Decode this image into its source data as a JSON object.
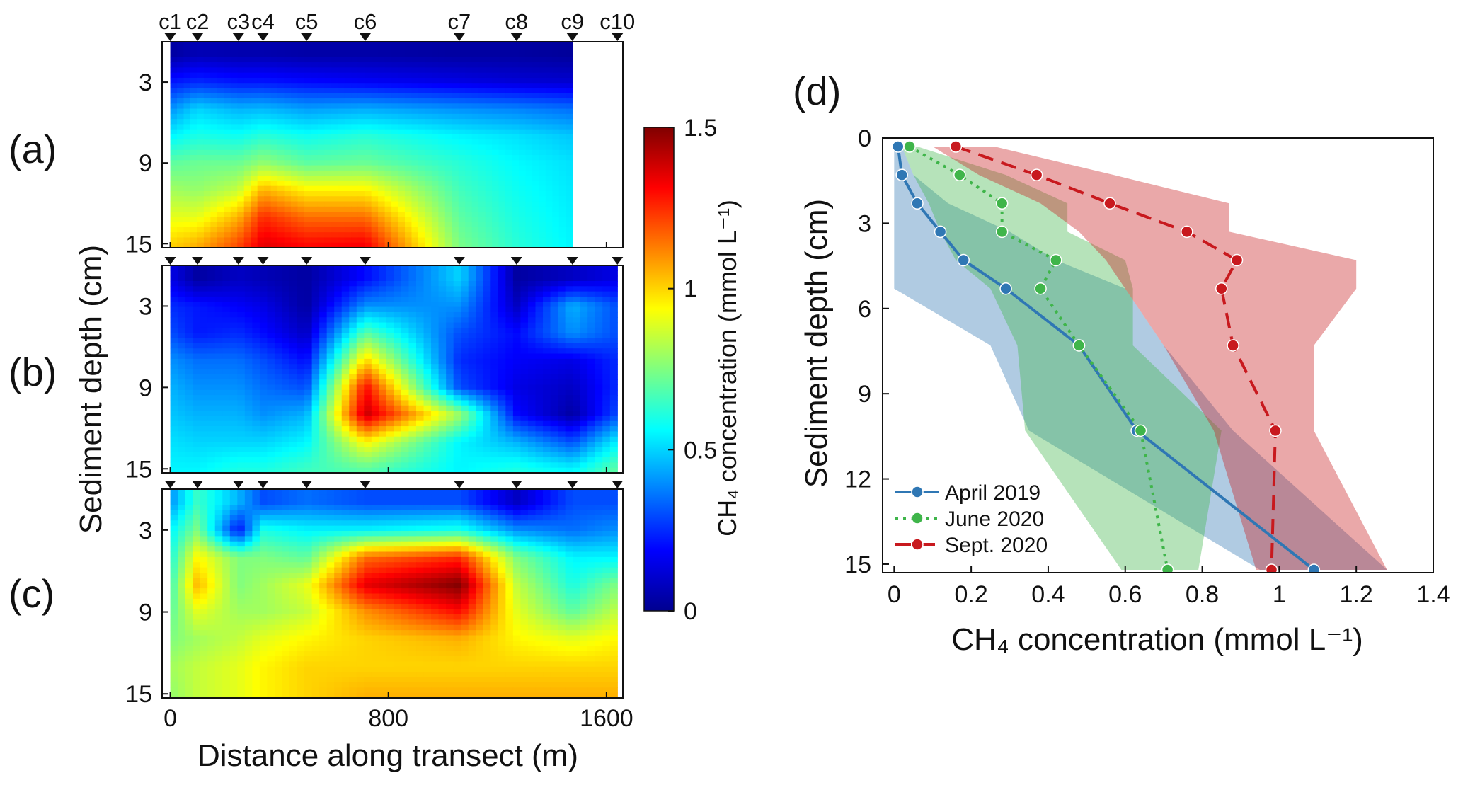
{
  "chart_data": [
    {
      "type": "heatmap",
      "panel_label": "(a)",
      "stations": [
        "c1",
        "c2",
        "c3",
        "c4",
        "c5",
        "c6",
        "c7",
        "c8",
        "c9",
        "c10"
      ],
      "station_positions_m": [
        0,
        100,
        250,
        340,
        500,
        715,
        1060,
        1270,
        1475,
        1640
      ],
      "depths_cm": [
        1,
        3,
        5,
        7,
        9,
        11,
        13,
        15
      ],
      "x_range_m": [
        -30,
        1660
      ],
      "y_range_cm": [
        0,
        15.3
      ],
      "data_extent_m": [
        0,
        1475
      ],
      "yticks": [
        3,
        9,
        15
      ],
      "values": [
        [
          0.05,
          0.08,
          0.07,
          0.07,
          0.06,
          0.06,
          0.05,
          0.05,
          0.04,
          null
        ],
        [
          0.22,
          0.25,
          0.22,
          0.22,
          0.2,
          0.18,
          0.15,
          0.13,
          0.12,
          null
        ],
        [
          0.4,
          0.5,
          0.45,
          0.46,
          0.42,
          0.44,
          0.4,
          0.38,
          0.35,
          null
        ],
        [
          0.55,
          0.6,
          0.58,
          0.62,
          0.58,
          0.62,
          0.55,
          0.52,
          0.48,
          null
        ],
        [
          0.7,
          0.72,
          0.72,
          0.78,
          0.7,
          0.72,
          0.62,
          0.56,
          0.52,
          null
        ],
        [
          0.8,
          0.78,
          0.85,
          1.05,
          0.95,
          0.95,
          0.66,
          0.58,
          0.53,
          null
        ],
        [
          0.9,
          0.9,
          1.05,
          1.25,
          1.15,
          1.15,
          0.7,
          0.6,
          0.54,
          null
        ],
        [
          1.0,
          1.05,
          1.2,
          1.35,
          1.3,
          1.32,
          0.74,
          0.62,
          0.55,
          null
        ]
      ]
    },
    {
      "type": "heatmap",
      "panel_label": "(b)",
      "yticks": [
        3,
        9,
        15
      ],
      "values": [
        [
          0.15,
          0.05,
          0.1,
          0.08,
          0.05,
          0.2,
          0.5,
          0.05,
          0.1,
          0.15
        ],
        [
          0.25,
          0.22,
          0.18,
          0.15,
          0.05,
          0.4,
          0.4,
          0.1,
          0.45,
          0.3
        ],
        [
          0.3,
          0.22,
          0.25,
          0.2,
          0.1,
          0.7,
          0.3,
          0.2,
          0.4,
          0.3
        ],
        [
          0.4,
          0.35,
          0.35,
          0.3,
          0.2,
          1.0,
          0.25,
          0.18,
          0.15,
          0.25
        ],
        [
          0.45,
          0.4,
          0.4,
          0.35,
          0.3,
          1.3,
          0.3,
          0.15,
          0.1,
          0.25
        ],
        [
          0.48,
          0.45,
          0.45,
          0.4,
          0.45,
          1.4,
          0.8,
          0.2,
          0.05,
          0.3
        ],
        [
          0.52,
          0.5,
          0.5,
          0.5,
          0.55,
          0.95,
          0.55,
          0.45,
          0.3,
          0.55
        ],
        [
          0.55,
          0.55,
          0.6,
          0.6,
          0.65,
          0.7,
          0.55,
          0.6,
          0.55,
          0.7
        ]
      ]
    },
    {
      "type": "heatmap",
      "panel_label": "(c)",
      "yticks": [
        3,
        9,
        15
      ],
      "xticks": [
        0,
        800,
        1600
      ],
      "xlabel": "Distance along transect (m)",
      "values": [
        [
          0.4,
          0.65,
          0.45,
          0.3,
          0.35,
          0.3,
          0.3,
          0.1,
          0.3,
          0.3
        ],
        [
          0.55,
          0.75,
          0.2,
          0.6,
          0.55,
          0.55,
          0.6,
          0.4,
          0.35,
          0.4
        ],
        [
          0.6,
          0.95,
          0.75,
          0.75,
          0.7,
          1.15,
          1.25,
          0.75,
          0.55,
          0.55
        ],
        [
          0.65,
          1.05,
          0.75,
          0.8,
          0.9,
          1.35,
          1.5,
          0.85,
          0.6,
          0.75
        ],
        [
          0.7,
          0.9,
          0.8,
          0.8,
          0.85,
          1.1,
          1.3,
          0.9,
          0.7,
          0.85
        ],
        [
          0.75,
          0.8,
          0.85,
          0.9,
          0.95,
          1.0,
          1.05,
          0.95,
          0.9,
          0.95
        ],
        [
          0.8,
          0.85,
          0.9,
          0.95,
          1.0,
          1.0,
          1.0,
          1.0,
          1.0,
          1.0
        ],
        [
          0.78,
          0.85,
          0.9,
          0.95,
          1.0,
          1.05,
          1.05,
          1.05,
          1.05,
          1.05
        ]
      ]
    },
    {
      "type": "colorbar",
      "label": "CH₄ concentration (mmol L⁻¹)",
      "range": [
        0,
        1.5
      ],
      "ticks": [
        "0",
        "0.5",
        "1",
        "1.5"
      ]
    },
    {
      "type": "line",
      "panel_label": "(d)",
      "xlabel": "CH₄ concentration (mmol L⁻¹)",
      "ylabel": "Sediment depth (cm)",
      "shared_ylabel": "Sediment depth (cm)",
      "xlim": [
        -0.03,
        1.4
      ],
      "ylim": [
        0,
        15.3
      ],
      "xticks": [
        "0",
        "0.2",
        "0.4",
        "0.6",
        "0.8",
        "1",
        "1.2",
        "1.4"
      ],
      "yticks": [
        "0",
        "3",
        "6",
        "9",
        "12",
        "15"
      ],
      "series": [
        {
          "name": "April 2019",
          "color": "#2f77b4",
          "style": "solid",
          "x": [
            0.01,
            0.02,
            0.06,
            0.12,
            0.18,
            0.29,
            0.48,
            0.63,
            1.09
          ],
          "y": [
            0.3,
            1.3,
            2.3,
            3.3,
            4.3,
            5.3,
            7.3,
            10.3,
            15.2
          ],
          "band_lower": [
            0.0,
            0.0,
            0.0,
            0.0,
            0.0,
            0.0,
            0.25,
            0.35,
            0.95
          ],
          "band_upper": [
            0.02,
            0.05,
            0.14,
            0.3,
            0.42,
            0.6,
            0.7,
            0.88,
            1.28
          ]
        },
        {
          "name": "June 2020",
          "color": "#3fb54a",
          "style": "dotted",
          "x": [
            0.04,
            0.17,
            0.28,
            0.28,
            0.42,
            0.38,
            0.48,
            0.64,
            0.71
          ],
          "y": [
            0.3,
            1.3,
            2.3,
            3.3,
            4.3,
            5.3,
            7.3,
            10.3,
            15.2
          ],
          "band_lower": [
            0.02,
            0.05,
            0.09,
            0.12,
            0.16,
            0.25,
            0.32,
            0.34,
            0.59
          ],
          "band_upper": [
            0.06,
            0.29,
            0.45,
            0.45,
            0.6,
            0.62,
            0.62,
            0.85,
            0.79
          ]
        },
        {
          "name": "Sept. 2020",
          "color": "#c8191e",
          "style": "dashed",
          "x": [
            0.16,
            0.37,
            0.56,
            0.76,
            0.89,
            0.85,
            0.88,
            0.99,
            0.98
          ],
          "y": [
            0.3,
            1.3,
            2.3,
            3.3,
            4.3,
            5.3,
            7.3,
            10.3,
            15.2
          ],
          "band_lower": [
            0.1,
            0.22,
            0.38,
            0.48,
            0.55,
            0.6,
            0.7,
            0.83,
            0.94
          ],
          "band_upper": [
            0.26,
            0.57,
            0.87,
            0.87,
            1.2,
            1.2,
            1.09,
            1.09,
            1.28
          ]
        }
      ],
      "legend_position": "bottom-left"
    }
  ]
}
